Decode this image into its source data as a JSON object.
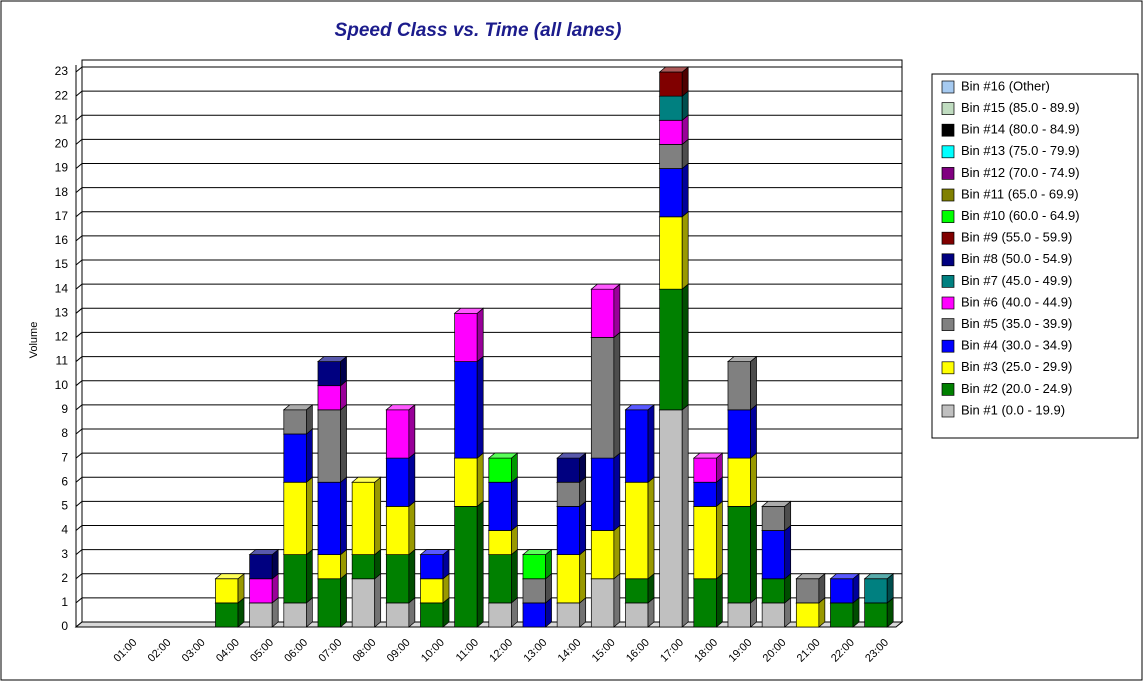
{
  "chart_data": {
    "type": "bar",
    "stacked": true,
    "title": "Speed Class vs. Time (all lanes)",
    "y_label": "Volume",
    "categories": [
      null,
      "01:00",
      "02:00",
      "03:00",
      "04:00",
      "05:00",
      "06:00",
      "07:00",
      "08:00",
      "09:00",
      "10:00",
      "11:00",
      "12:00",
      "13:00",
      "14:00",
      "15:00",
      "16:00",
      "17:00",
      "18:00",
      "19:00",
      "20:00",
      "21:00",
      "22:00",
      "23:00"
    ],
    "ylim": [
      0,
      23
    ],
    "yticks": [
      0,
      1,
      2,
      3,
      4,
      5,
      6,
      7,
      8,
      9,
      10,
      11,
      12,
      13,
      14,
      15,
      16,
      17,
      18,
      19,
      20,
      21,
      22,
      23
    ],
    "grid": true,
    "legend": "right",
    "series": [
      {
        "name": "Bin #1 (0.0 - 19.9)",
        "color": "#c0c0c0",
        "values": [
          0,
          0,
          0,
          0,
          0,
          1,
          1,
          0,
          2,
          1,
          0,
          0,
          1,
          0,
          1,
          2,
          1,
          9,
          0,
          1,
          1,
          0,
          0,
          0
        ]
      },
      {
        "name": "Bin #2 (20.0 - 24.9)",
        "color": "#008000",
        "values": [
          0,
          0,
          0,
          0,
          1,
          0,
          2,
          2,
          1,
          2,
          1,
          5,
          2,
          0,
          0,
          0,
          1,
          5,
          2,
          4,
          1,
          0,
          1,
          1
        ]
      },
      {
        "name": "Bin #3 (25.0 - 29.9)",
        "color": "#ffff00",
        "values": [
          0,
          0,
          0,
          0,
          1,
          0,
          3,
          1,
          3,
          2,
          1,
          2,
          1,
          0,
          2,
          2,
          4,
          3,
          3,
          2,
          0,
          1,
          0,
          0
        ]
      },
      {
        "name": "Bin #4 (30.0 - 34.9)",
        "color": "#0000ff",
        "values": [
          0,
          0,
          0,
          0,
          0,
          0,
          2,
          3,
          0,
          2,
          1,
          4,
          2,
          1,
          2,
          3,
          3,
          2,
          1,
          2,
          2,
          0,
          1,
          0
        ]
      },
      {
        "name": "Bin #5 (35.0 - 39.9)",
        "color": "#808080",
        "values": [
          0,
          0,
          0,
          0,
          0,
          0,
          1,
          3,
          0,
          0,
          0,
          0,
          0,
          1,
          1,
          5,
          0,
          1,
          0,
          2,
          1,
          1,
          0,
          0
        ]
      },
      {
        "name": "Bin #6 (40.0 - 44.9)",
        "color": "#ff00ff",
        "values": [
          0,
          0,
          0,
          0,
          0,
          1,
          0,
          1,
          0,
          2,
          0,
          2,
          0,
          0,
          0,
          2,
          0,
          1,
          1,
          0,
          0,
          0,
          0,
          0
        ]
      },
      {
        "name": "Bin #7 (45.0 - 49.9)",
        "color": "#008080",
        "values": [
          0,
          0,
          0,
          0,
          0,
          0,
          0,
          0,
          0,
          0,
          0,
          0,
          0,
          0,
          0,
          0,
          0,
          1,
          0,
          0,
          0,
          0,
          0,
          1
        ]
      },
      {
        "name": "Bin #8 (50.0 - 54.9)",
        "color": "#000080",
        "values": [
          0,
          0,
          0,
          0,
          0,
          1,
          0,
          1,
          0,
          0,
          0,
          0,
          0,
          0,
          1,
          0,
          0,
          0,
          0,
          0,
          0,
          0,
          0,
          0
        ]
      },
      {
        "name": "Bin #9 (55.0 - 59.9)",
        "color": "#800000",
        "values": [
          0,
          0,
          0,
          0,
          0,
          0,
          0,
          0,
          0,
          0,
          0,
          0,
          0,
          0,
          0,
          0,
          0,
          1,
          0,
          0,
          0,
          0,
          0,
          0
        ]
      },
      {
        "name": "Bin #10 (60.0 - 64.9)",
        "color": "#00ff00",
        "values": [
          0,
          0,
          0,
          0,
          0,
          0,
          0,
          0,
          0,
          0,
          0,
          0,
          1,
          1,
          0,
          0,
          0,
          0,
          0,
          0,
          0,
          0,
          0,
          0
        ]
      },
      {
        "name": "Bin #11 (65.0 - 69.9)",
        "color": "#808000",
        "values": [
          0,
          0,
          0,
          0,
          0,
          0,
          0,
          0,
          0,
          0,
          0,
          0,
          0,
          0,
          0,
          0,
          0,
          0,
          0,
          0,
          0,
          0,
          0,
          0
        ]
      },
      {
        "name": "Bin #12 (70.0 - 74.9)",
        "color": "#800080",
        "values": [
          0,
          0,
          0,
          0,
          0,
          0,
          0,
          0,
          0,
          0,
          0,
          0,
          0,
          0,
          0,
          0,
          0,
          0,
          0,
          0,
          0,
          0,
          0,
          0
        ]
      },
      {
        "name": "Bin #13 (75.0 - 79.9)",
        "color": "#00ffff",
        "values": [
          0,
          0,
          0,
          0,
          0,
          0,
          0,
          0,
          0,
          0,
          0,
          0,
          0,
          0,
          0,
          0,
          0,
          0,
          0,
          0,
          0,
          0,
          0,
          0
        ]
      },
      {
        "name": "Bin #14 (80.0 - 84.9)",
        "color": "#000000",
        "values": [
          0,
          0,
          0,
          0,
          0,
          0,
          0,
          0,
          0,
          0,
          0,
          0,
          0,
          0,
          0,
          0,
          0,
          0,
          0,
          0,
          0,
          0,
          0,
          0
        ]
      },
      {
        "name": "Bin #15 (85.0 - 89.9)",
        "color": "#c0dcc0",
        "values": [
          0,
          0,
          0,
          0,
          0,
          0,
          0,
          0,
          0,
          0,
          0,
          0,
          0,
          0,
          0,
          0,
          0,
          0,
          0,
          0,
          0,
          0,
          0,
          0
        ]
      },
      {
        "name": "Bin #16 (Other)",
        "color": "#a6caf0",
        "values": [
          0,
          0,
          0,
          0,
          0,
          0,
          0,
          0,
          0,
          0,
          0,
          0,
          0,
          0,
          0,
          0,
          0,
          0,
          0,
          0,
          0,
          0,
          0,
          0
        ]
      }
    ]
  }
}
